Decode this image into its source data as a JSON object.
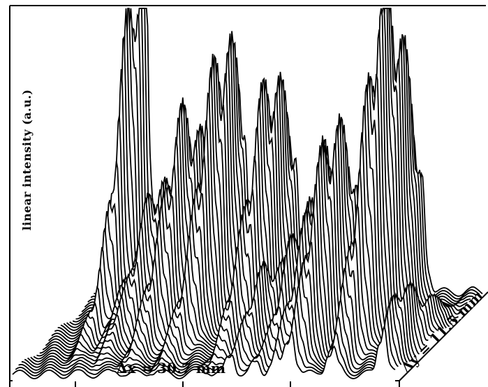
{
  "chart_data": {
    "type": "area",
    "ylabel": "linear intensity (a.u.)",
    "xlabel": "Δx = 30.7 mm",
    "depth_label": "Δy = 11.5 mm",
    "grid": false,
    "x_range_mm": [
      0,
      30.7
    ],
    "y_range_mm": [
      0,
      11.5
    ],
    "intensity_range": [
      0,
      1
    ],
    "num_profiles": 30,
    "peaks": [
      {
        "x_mm": 3.6,
        "y_mm": 11.5,
        "height": 0.98,
        "width_mm": 0.35
      },
      {
        "x_mm": 4.9,
        "y_mm": 10.2,
        "height": 0.2,
        "width_mm": 0.35
      },
      {
        "x_mm": 5.9,
        "y_mm": 9.5,
        "height": 0.32,
        "width_mm": 0.4
      },
      {
        "x_mm": 8.4,
        "y_mm": 9.0,
        "height": 0.52,
        "width_mm": 0.45
      },
      {
        "x_mm": 11.3,
        "y_mm": 9.2,
        "height": 0.7,
        "width_mm": 0.45
      },
      {
        "x_mm": 15.4,
        "y_mm": 8.8,
        "height": 0.62,
        "width_mm": 0.45
      },
      {
        "x_mm": 17.5,
        "y_mm": 5.0,
        "height": 0.2,
        "width_mm": 0.35
      },
      {
        "x_mm": 19.5,
        "y_mm": 6.8,
        "height": 0.32,
        "width_mm": 0.35
      },
      {
        "x_mm": 21.0,
        "y_mm": 6.5,
        "height": 0.46,
        "width_mm": 0.35
      },
      {
        "x_mm": 22.3,
        "y_mm": 5.6,
        "height": 0.55,
        "width_mm": 0.4
      },
      {
        "x_mm": 25.6,
        "y_mm": 7.2,
        "height": 0.88,
        "width_mm": 0.45
      },
      {
        "x_mm": 29.7,
        "y_mm": 2.3,
        "height": 0.18,
        "width_mm": 0.35
      }
    ]
  }
}
